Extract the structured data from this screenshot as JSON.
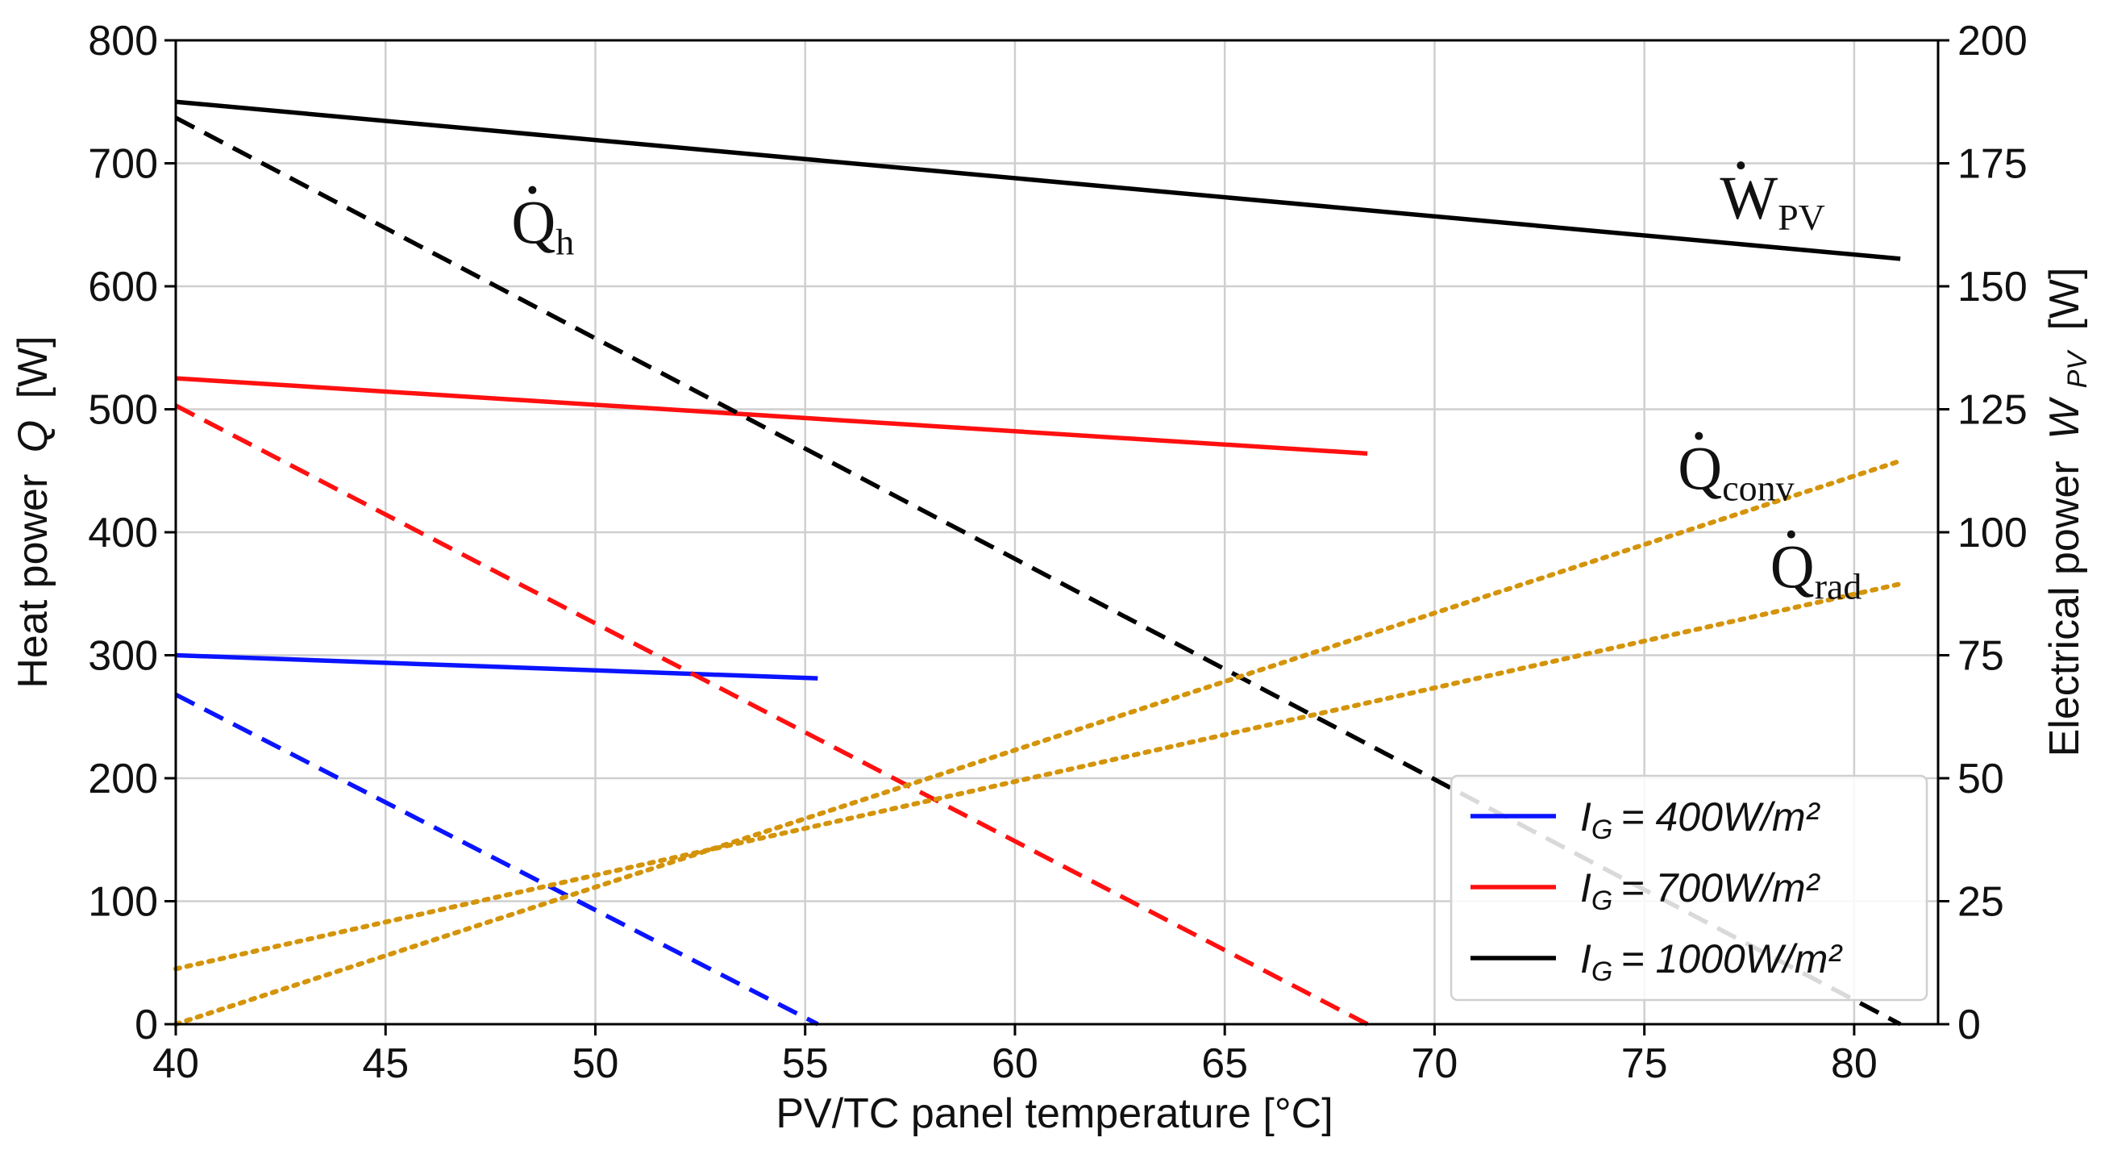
{
  "chart_data": {
    "type": "line",
    "xlabel": "PV/TC panel temperature [°C]",
    "ylabel_left_prefix": "Heat power",
    "ylabel_left_symbol": "Q",
    "ylabel_left_unit": "[W]",
    "ylabel_right_prefix": "Electrical power",
    "ylabel_right_symbol": "W",
    "ylabel_right_sub": "PV",
    "ylabel_right_unit": "[W]",
    "xlim": [
      40,
      82
    ],
    "ylim_left": [
      0,
      800
    ],
    "ylim_right": [
      0,
      200
    ],
    "x_ticks": [
      "40",
      "45",
      "50",
      "55",
      "60",
      "65",
      "70",
      "75",
      "80"
    ],
    "y_left_ticks": [
      "0",
      "100",
      "200",
      "300",
      "400",
      "500",
      "600",
      "700",
      "800"
    ],
    "y_right_ticks": [
      "0",
      "25",
      "50",
      "75",
      "100",
      "125",
      "150",
      "175",
      "200"
    ],
    "grid": true,
    "legend_position": "lower-right",
    "colors": {
      "blue": "#0a14ff",
      "red": "#ff1010",
      "black": "#000000",
      "orange": "#d4940a"
    },
    "legend": [
      {
        "label": "I_G = 400W/m²",
        "prefix": "I",
        "sub": "G",
        "value": "= 400W/m²",
        "color": "#0a14ff"
      },
      {
        "label": "I_G = 700W/m²",
        "prefix": "I",
        "sub": "G",
        "value": "= 700W/m²",
        "color": "#ff1010"
      },
      {
        "label": "I_G = 1000W/m²",
        "prefix": "I",
        "sub": "G",
        "value": "= 1000W/m²",
        "color": "#000000"
      }
    ],
    "series": [
      {
        "name": "W_PV (400 W/m²)",
        "axis": "right",
        "style": "solid",
        "color": "#0a14ff",
        "x": [
          40,
          55.3
        ],
        "y": [
          75,
          70.3
        ]
      },
      {
        "name": "W_PV (700 W/m²)",
        "axis": "right",
        "style": "solid",
        "color": "#ff1010",
        "x": [
          40,
          68.4
        ],
        "y": [
          131.3,
          116
        ]
      },
      {
        "name": "W_PV (1000 W/m²)",
        "axis": "right",
        "style": "solid",
        "color": "#000000",
        "x": [
          40,
          81.1
        ],
        "y": [
          187.5,
          155.6
        ]
      },
      {
        "name": "Q_h (400 W/m²)",
        "axis": "left",
        "style": "dashed",
        "color": "#0a14ff",
        "x": [
          40,
          55.3
        ],
        "y": [
          268,
          0
        ]
      },
      {
        "name": "Q_h (700 W/m²)",
        "axis": "left",
        "style": "dashed",
        "color": "#ff1010",
        "x": [
          40,
          68.4
        ],
        "y": [
          503,
          0
        ]
      },
      {
        "name": "Q_h (1000 W/m²)",
        "axis": "left",
        "style": "dashed",
        "color": "#000000",
        "x": [
          40,
          81.1
        ],
        "y": [
          737,
          0
        ]
      },
      {
        "name": "Q_conv",
        "axis": "left",
        "style": "dotted",
        "color": "#d4940a",
        "x": [
          40,
          81.1
        ],
        "y": [
          0,
          458
        ]
      },
      {
        "name": "Q_rad",
        "axis": "left",
        "style": "dotted",
        "color": "#d4940a",
        "x": [
          40,
          81.1
        ],
        "y": [
          45,
          358
        ]
      }
    ],
    "annotations": [
      {
        "id": "qh",
        "main": "Q",
        "sub": "h",
        "x": 48.0,
        "y": 635
      },
      {
        "id": "wpv",
        "main": "W",
        "sub": "PV",
        "x": 76.8,
        "y": 655
      },
      {
        "id": "qconv",
        "main": "Q",
        "sub": "conv",
        "x": 75.8,
        "y": 435
      },
      {
        "id": "qrad",
        "main": "Q",
        "sub": "rad",
        "x": 78.0,
        "y": 355
      }
    ]
  }
}
